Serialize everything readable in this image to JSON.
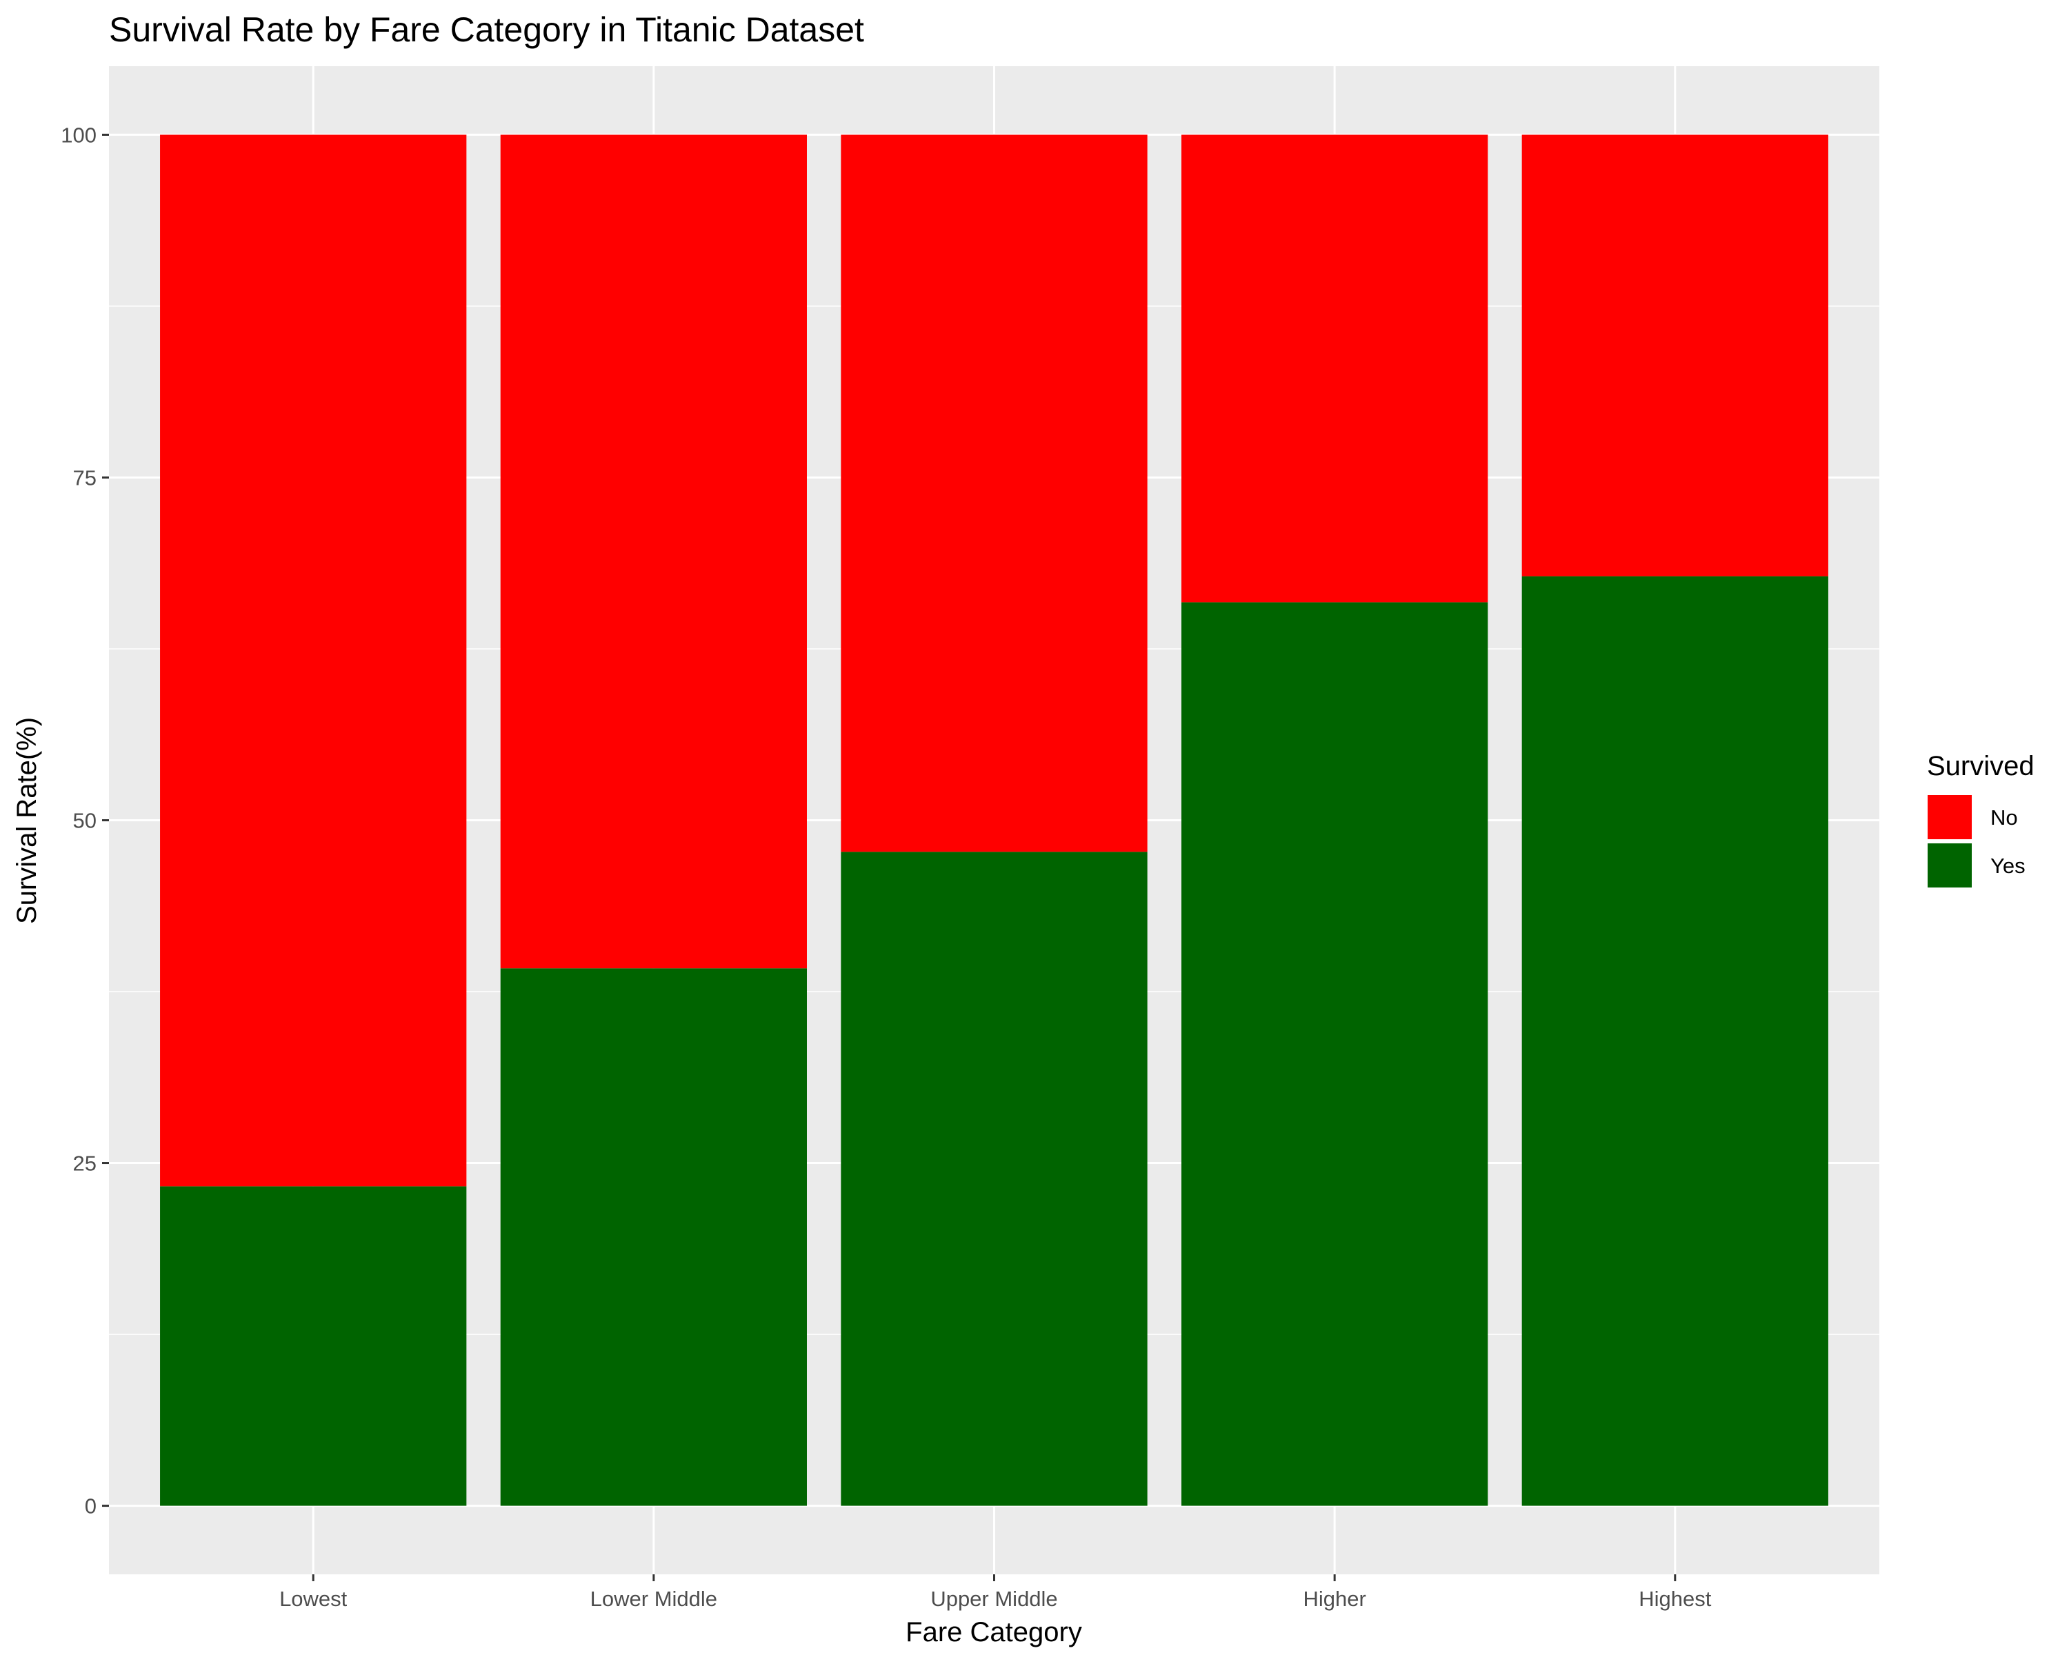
{
  "chart_data": {
    "type": "bar",
    "stacked": true,
    "title": "Survival Rate by Fare Category in Titanic Dataset",
    "xlabel": "Fare Category",
    "ylabel": "Survival Rate(%)",
    "categories": [
      "Lowest",
      "Lower Middle",
      "Upper Middle",
      "Higher",
      "Highest"
    ],
    "series": [
      {
        "name": "Yes",
        "color": "#006400",
        "values": [
          23.3,
          39.2,
          47.7,
          65.9,
          67.8
        ]
      },
      {
        "name": "No",
        "color": "#ff0000",
        "values": [
          76.7,
          60.8,
          52.3,
          34.1,
          32.2
        ]
      }
    ],
    "ylim": [
      -5,
      105
    ],
    "yticks": [
      0,
      25,
      50,
      75,
      100
    ],
    "ytick_labels": [
      "0",
      "25",
      "50",
      "75",
      "100"
    ],
    "grid": true,
    "panel_background": "#ebebeb",
    "legend": {
      "title": "Survived",
      "placement": "right",
      "entries": [
        {
          "label": "No",
          "color": "#ff0000"
        },
        {
          "label": "Yes",
          "color": "#006400"
        }
      ]
    }
  }
}
